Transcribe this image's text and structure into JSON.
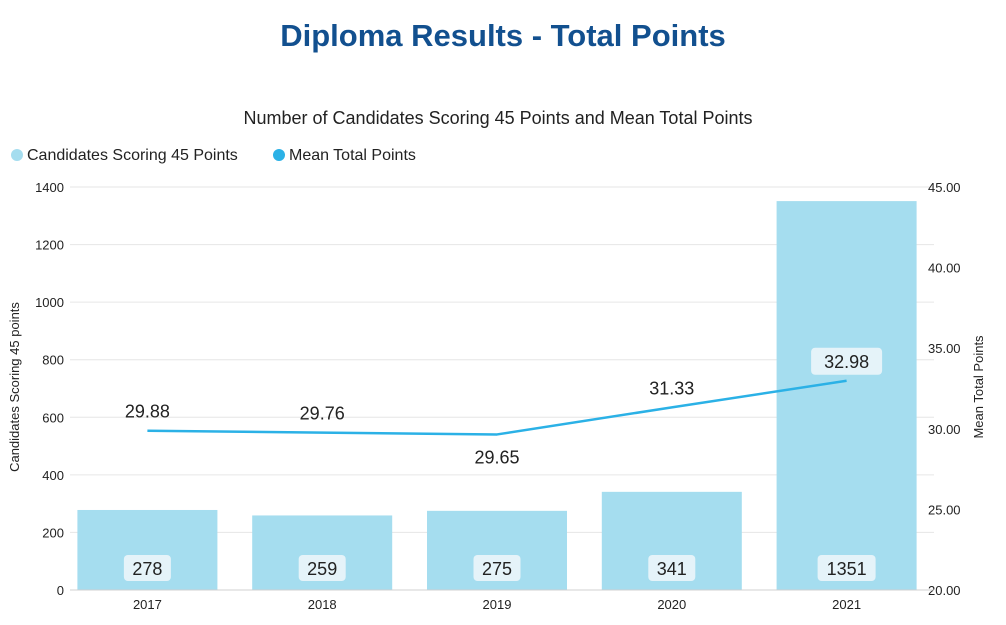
{
  "page": {
    "title": "Diploma Results - Total Points"
  },
  "colors": {
    "title": "#12508f",
    "bar": "#a5ddef",
    "line": "#2bb1e6",
    "grid": "#e6e6e6",
    "label_box": "#e5f3f9"
  },
  "chart_data": {
    "type": "bar",
    "title": "Number of Candidates Scoring 45 Points and Mean Total Points",
    "categories": [
      "2017",
      "2018",
      "2019",
      "2020",
      "2021"
    ],
    "series": [
      {
        "name": "Candidates Scoring 45 Points",
        "type": "bar",
        "axis": "left",
        "values": [
          278,
          259,
          275,
          341,
          1351
        ],
        "labels": [
          "278",
          "259",
          "275",
          "341",
          "1351"
        ]
      },
      {
        "name": "Mean Total Points",
        "type": "line",
        "axis": "right",
        "values": [
          29.88,
          29.76,
          29.65,
          31.33,
          32.98
        ],
        "labels": [
          "29.88",
          "29.76",
          "29.65",
          "31.33",
          "32.98"
        ]
      }
    ],
    "ylabel": "Candidates Scoring 45 points",
    "ylabel_right": "Mean Total Points",
    "ylim": [
      0,
      1400
    ],
    "ylim_right": [
      20,
      45
    ],
    "yticks": [
      "0",
      "200",
      "400",
      "600",
      "800",
      "1000",
      "1200",
      "1400"
    ],
    "yticks_right": [
      "20.00",
      "25.00",
      "30.00",
      "35.00",
      "40.00",
      "45.00"
    ],
    "legend_position": "top-left",
    "grid": true
  }
}
